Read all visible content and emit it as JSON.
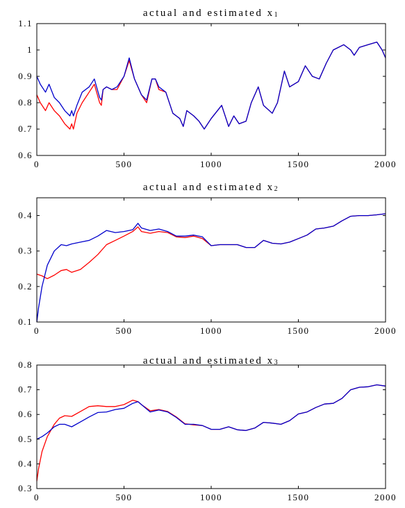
{
  "chart_data": [
    {
      "type": "line",
      "title": "actual and estimated x",
      "title_sub": "1",
      "xlabel": "",
      "ylabel": "",
      "xlim": [
        0,
        2000
      ],
      "ylim": [
        0.6,
        1.1
      ],
      "xticks": [
        0,
        500,
        1000,
        1500,
        2000
      ],
      "xtick_labels": [
        "0",
        "500",
        "1000",
        "1500",
        "2000"
      ],
      "yticks": [
        0.6,
        0.7,
        0.8,
        0.9,
        1.0,
        1.1
      ],
      "ytick_labels": [
        "0.6",
        "0.7",
        "0.8",
        "0.9",
        "1",
        "1.1"
      ],
      "grid": false,
      "series": [
        {
          "color": "#ff0000",
          "x": [
            0,
            20,
            50,
            70,
            100,
            130,
            160,
            190,
            200,
            210,
            230,
            260,
            300,
            330,
            360,
            370,
            380,
            400,
            430,
            460,
            500,
            530,
            560,
            600,
            630,
            660,
            680,
            700,
            740,
            780,
            820,
            840,
            860,
            900,
            930,
            960,
            1000,
            1060,
            1100,
            1130,
            1160,
            1200,
            1230,
            1270,
            1300,
            1350,
            1380,
            1420,
            1450,
            1500,
            1540,
            1580,
            1620,
            1660,
            1700,
            1760,
            1800,
            1820,
            1850,
            1900,
            1950,
            1980,
            2000
          ],
          "y": [
            0.83,
            0.8,
            0.77,
            0.8,
            0.77,
            0.75,
            0.72,
            0.7,
            0.72,
            0.7,
            0.76,
            0.8,
            0.84,
            0.87,
            0.8,
            0.79,
            0.85,
            0.86,
            0.85,
            0.85,
            0.9,
            0.96,
            0.89,
            0.83,
            0.8,
            0.89,
            0.89,
            0.85,
            0.84,
            0.76,
            0.74,
            0.71,
            0.77,
            0.75,
            0.73,
            0.7,
            0.74,
            0.79,
            0.71,
            0.75,
            0.72,
            0.73,
            0.8,
            0.86,
            0.79,
            0.76,
            0.8,
            0.92,
            0.86,
            0.88,
            0.94,
            0.9,
            0.89,
            0.95,
            1.0,
            1.02,
            1.0,
            0.98,
            1.01,
            1.02,
            1.03,
            1.0,
            0.97
          ]
        },
        {
          "color": "#0000cc",
          "x": [
            0,
            20,
            50,
            70,
            100,
            130,
            160,
            190,
            200,
            210,
            230,
            260,
            300,
            330,
            360,
            370,
            380,
            400,
            430,
            460,
            500,
            530,
            560,
            600,
            630,
            660,
            680,
            700,
            740,
            780,
            820,
            840,
            860,
            900,
            930,
            960,
            1000,
            1060,
            1100,
            1130,
            1160,
            1200,
            1230,
            1270,
            1300,
            1350,
            1380,
            1420,
            1450,
            1500,
            1540,
            1580,
            1620,
            1660,
            1700,
            1760,
            1800,
            1820,
            1850,
            1900,
            1950,
            1980,
            2000
          ],
          "y": [
            0.9,
            0.87,
            0.84,
            0.87,
            0.82,
            0.8,
            0.77,
            0.75,
            0.77,
            0.75,
            0.79,
            0.84,
            0.86,
            0.89,
            0.82,
            0.81,
            0.85,
            0.86,
            0.85,
            0.86,
            0.9,
            0.97,
            0.89,
            0.83,
            0.81,
            0.89,
            0.89,
            0.86,
            0.84,
            0.76,
            0.74,
            0.71,
            0.77,
            0.75,
            0.73,
            0.7,
            0.74,
            0.79,
            0.71,
            0.75,
            0.72,
            0.73,
            0.8,
            0.86,
            0.79,
            0.76,
            0.8,
            0.92,
            0.86,
            0.88,
            0.94,
            0.9,
            0.89,
            0.95,
            1.0,
            1.02,
            1.0,
            0.98,
            1.01,
            1.02,
            1.03,
            1.0,
            0.97
          ]
        }
      ]
    },
    {
      "type": "line",
      "title": "actual and estimated x",
      "title_sub": "2",
      "xlabel": "",
      "ylabel": "",
      "xlim": [
        0,
        2000
      ],
      "ylim": [
        0.1,
        0.45
      ],
      "xticks": [
        0,
        500,
        1000,
        1500,
        2000
      ],
      "xtick_labels": [
        "0",
        "500",
        "1000",
        "1500",
        "2000"
      ],
      "yticks": [
        0.1,
        0.2,
        0.3,
        0.4
      ],
      "ytick_labels": [
        "0.1",
        "0.2",
        "0.3",
        "0.4"
      ],
      "grid": false,
      "series": [
        {
          "color": "#ff0000",
          "x": [
            0,
            30,
            60,
            100,
            140,
            170,
            200,
            250,
            300,
            350,
            400,
            450,
            500,
            550,
            580,
            600,
            650,
            700,
            750,
            800,
            850,
            900,
            950,
            1000,
            1050,
            1100,
            1150,
            1200,
            1250,
            1300,
            1350,
            1400,
            1450,
            1500,
            1550,
            1600,
            1650,
            1700,
            1750,
            1800,
            1850,
            1900,
            1950,
            2000
          ],
          "y": [
            0.235,
            0.23,
            0.222,
            0.232,
            0.245,
            0.248,
            0.24,
            0.248,
            0.268,
            0.29,
            0.318,
            0.33,
            0.342,
            0.355,
            0.368,
            0.355,
            0.35,
            0.355,
            0.352,
            0.34,
            0.338,
            0.342,
            0.335,
            0.315,
            0.318,
            0.318,
            0.318,
            0.31,
            0.31,
            0.33,
            0.322,
            0.32,
            0.325,
            0.335,
            0.345,
            0.362,
            0.365,
            0.37,
            0.385,
            0.398,
            0.4,
            0.4,
            0.402,
            0.405
          ]
        },
        {
          "color": "#0000cc",
          "x": [
            0,
            10,
            30,
            60,
            100,
            140,
            170,
            200,
            250,
            300,
            350,
            400,
            450,
            500,
            550,
            580,
            600,
            650,
            700,
            750,
            800,
            850,
            900,
            950,
            1000,
            1050,
            1100,
            1150,
            1200,
            1250,
            1300,
            1350,
            1400,
            1450,
            1500,
            1550,
            1600,
            1650,
            1700,
            1750,
            1800,
            1850,
            1900,
            1950,
            2000
          ],
          "y": [
            0.1,
            0.14,
            0.2,
            0.26,
            0.3,
            0.318,
            0.315,
            0.32,
            0.325,
            0.33,
            0.342,
            0.358,
            0.352,
            0.355,
            0.36,
            0.378,
            0.365,
            0.358,
            0.362,
            0.355,
            0.342,
            0.342,
            0.345,
            0.34,
            0.315,
            0.318,
            0.318,
            0.318,
            0.31,
            0.31,
            0.33,
            0.322,
            0.32,
            0.325,
            0.335,
            0.345,
            0.362,
            0.365,
            0.37,
            0.385,
            0.398,
            0.4,
            0.4,
            0.402,
            0.405
          ]
        }
      ]
    },
    {
      "type": "line",
      "title": "actual and estimated x",
      "title_sub": "3",
      "xlabel": "",
      "ylabel": "",
      "xlim": [
        0,
        2000
      ],
      "ylim": [
        0.3,
        0.8
      ],
      "xticks": [
        0,
        500,
        1000,
        1500,
        2000
      ],
      "xtick_labels": [
        "0",
        "500",
        "1000",
        "1500",
        "2000"
      ],
      "yticks": [
        0.3,
        0.4,
        0.5,
        0.6,
        0.7,
        0.8
      ],
      "ytick_labels": [
        "0.3",
        "0.4",
        "0.5",
        "0.6",
        "0.7",
        "0.8"
      ],
      "grid": false,
      "series": [
        {
          "color": "#ff0000",
          "x": [
            0,
            10,
            30,
            60,
            100,
            130,
            160,
            200,
            250,
            300,
            350,
            400,
            450,
            500,
            550,
            580,
            600,
            650,
            700,
            750,
            800,
            850,
            900,
            950,
            1000,
            1050,
            1100,
            1150,
            1200,
            1250,
            1300,
            1350,
            1400,
            1450,
            1500,
            1550,
            1600,
            1650,
            1700,
            1750,
            1800,
            1850,
            1900,
            1950,
            2000
          ],
          "y": [
            0.33,
            0.38,
            0.45,
            0.51,
            0.56,
            0.585,
            0.595,
            0.592,
            0.612,
            0.632,
            0.635,
            0.632,
            0.632,
            0.64,
            0.658,
            0.652,
            0.64,
            0.615,
            0.62,
            0.612,
            0.59,
            0.562,
            0.558,
            0.555,
            0.54,
            0.54,
            0.55,
            0.538,
            0.535,
            0.545,
            0.568,
            0.565,
            0.56,
            0.575,
            0.602,
            0.61,
            0.628,
            0.642,
            0.645,
            0.665,
            0.7,
            0.71,
            0.712,
            0.72,
            0.715
          ]
        },
        {
          "color": "#0000cc",
          "x": [
            0,
            30,
            60,
            100,
            130,
            160,
            200,
            250,
            300,
            350,
            400,
            450,
            500,
            550,
            580,
            600,
            650,
            700,
            750,
            800,
            850,
            900,
            950,
            1000,
            1050,
            1100,
            1150,
            1200,
            1250,
            1300,
            1350,
            1400,
            1450,
            1500,
            1550,
            1600,
            1650,
            1700,
            1750,
            1800,
            1850,
            1900,
            1950,
            2000
          ],
          "y": [
            0.5,
            0.51,
            0.525,
            0.55,
            0.56,
            0.56,
            0.55,
            0.57,
            0.59,
            0.608,
            0.61,
            0.62,
            0.625,
            0.645,
            0.652,
            0.64,
            0.61,
            0.618,
            0.61,
            0.588,
            0.56,
            0.56,
            0.555,
            0.54,
            0.54,
            0.55,
            0.538,
            0.535,
            0.545,
            0.568,
            0.565,
            0.56,
            0.575,
            0.602,
            0.61,
            0.628,
            0.642,
            0.645,
            0.665,
            0.7,
            0.71,
            0.712,
            0.72,
            0.715
          ]
        }
      ]
    }
  ]
}
